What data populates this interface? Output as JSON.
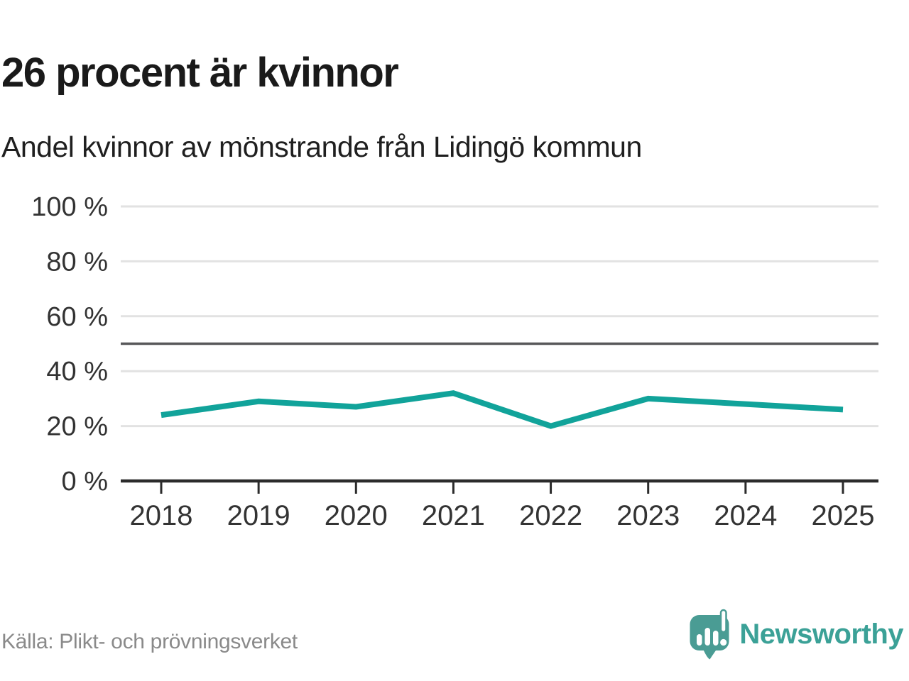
{
  "chart_data": {
    "type": "line",
    "title": "26 procent är kvinnor",
    "subtitle": "Andel kvinnor av mönstrande från Lidingö kommun",
    "categories": [
      "2018",
      "2019",
      "2020",
      "2021",
      "2022",
      "2023",
      "2024",
      "2025"
    ],
    "series": [
      {
        "name": "Andel kvinnor (%)",
        "values": [
          24,
          29,
          27,
          32,
          20,
          30,
          28,
          26
        ]
      }
    ],
    "xlabel": "",
    "ylabel": "",
    "ylim": [
      0,
      100
    ],
    "yticks": [
      0,
      20,
      40,
      60,
      80,
      100
    ],
    "ytick_suffix": " %",
    "reference_line_y": 50,
    "grid": true,
    "legend": "none",
    "source": "Källa: Plikt- och prövningsverket"
  },
  "footer": {
    "brand": "Newsworthy",
    "logo_icon": "newsworthy-speech-bubble-chart-icon"
  },
  "colors": {
    "title": "#1a1a1a",
    "subtitle": "#1f1f1f",
    "axis_labels": "#333333",
    "grid": "#e2e2e2",
    "reference_line": "#58585a",
    "axis": "#2b2b2b",
    "line": "#11a39a",
    "source_text": "#8a8a8a",
    "brand": "#3ba197",
    "brand_bubble": "#4a9c94"
  }
}
